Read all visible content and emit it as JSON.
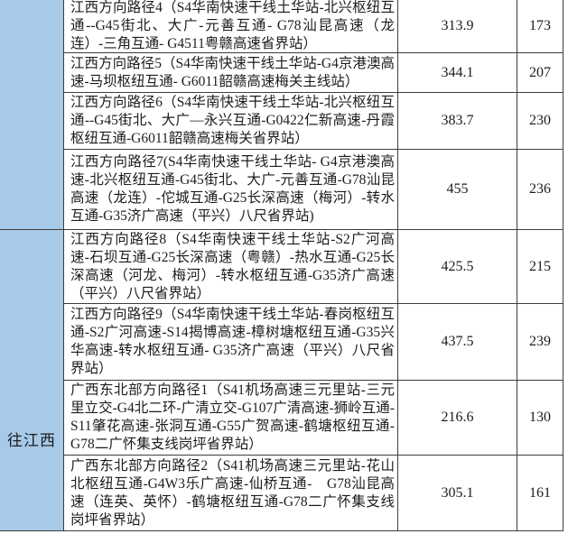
{
  "table": {
    "group_column": {
      "top_group_label": "",
      "bottom_group_label": "往江西"
    },
    "rows": [
      {
        "route": "江西方向路径4（S4华南快速干线土华站-北兴枢纽互通--G45街北、大广-元善互通- G78汕昆高速（龙连）-三角互通- G4511粤赣高速省界站）",
        "distance": "313.9",
        "value": "173"
      },
      {
        "route": "江西方向路径5（S4华南快速干线土华站-G4京港澳高速-马坝枢纽互通- G6011韶赣高速梅关主线站）",
        "distance": "344.1",
        "value": "207"
      },
      {
        "route": "江西方向路径6（S4华南快速干线土华站-北兴枢纽互通--G45街北、大广—永兴互通-G0422仁新高速-丹霞枢纽互通-G6011韶赣高速梅关省界站）",
        "distance": "383.7",
        "value": "230"
      },
      {
        "route": "江西方向路径7(S4华南快速干线土华站- G4京港澳高速-北兴枢纽互通-G45街北、大广-元善互通-G78汕昆高速（龙连）-佗城互通-G25长深高速（梅河）-转水互通-G35济广高速（平兴）八尺省界站)",
        "distance": "455",
        "value": "236"
      },
      {
        "route": "江西方向路径8（S4华南快速干线土华站-S2广河高速-石坝互通-G25长深高速（粤赣）-热水互通-G25长深高速（河龙、梅河）-转水枢纽互通-G35济广高速（平兴）八尺省界站）",
        "distance": "425.5",
        "value": "215"
      },
      {
        "route": "江西方向路径9（S4华南快速干线土华站-春岗枢纽互通-S2广河高速-S14揭博高速-樟树塘枢纽互通-G35兴华高速-转水枢纽互通- G35济广高速（平兴）八尺省界站）",
        "distance": "437.5",
        "value": "239"
      },
      {
        "route": "广西东北部方向路径1（S41机场高速三元里站-三元里立交-G4北二环-广清立交-G107广清高速-狮岭互通-S11肇花高速-张洞互通-G55广贺高速-鹤塘枢纽互通-G78二广怀集支线岗坪省界站）",
        "distance": "216.6",
        "value": "130"
      },
      {
        "route": "广西东北部方向路径2（S41机场高速三元里站-花山北枢纽互通-G4W3乐广高速-仙桥互通-　G78汕昆高速（连英、英怀）-鹤塘枢纽互通-G78二广怀集支线岗坪省界站）",
        "distance": "305.1",
        "value": "161"
      }
    ]
  },
  "colors": {
    "group_cell_bg": "#a8cae9",
    "border": "#3d3d3d",
    "text": "#1c1c1c"
  }
}
